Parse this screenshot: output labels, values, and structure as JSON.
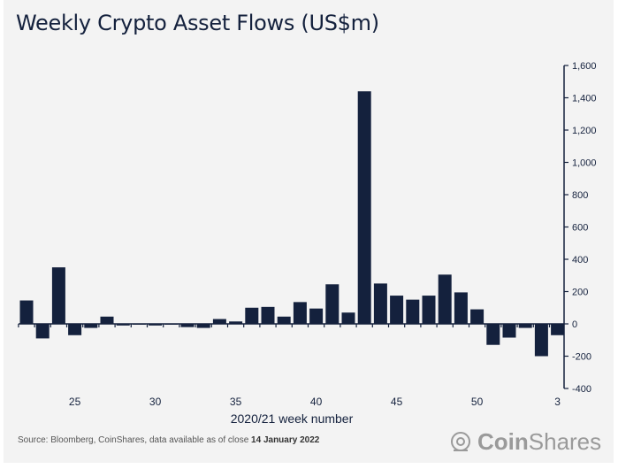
{
  "chart_data": {
    "type": "bar",
    "title": "Weekly Crypto Asset Flows (US$m)",
    "xlabel": "2020/21 week number",
    "ylabel": "",
    "categories": [
      "22",
      "23",
      "24",
      "25",
      "26",
      "27",
      "28",
      "29",
      "30",
      "31",
      "32",
      "33",
      "34",
      "35",
      "36",
      "37",
      "38",
      "39",
      "40",
      "41",
      "42",
      "43",
      "44",
      "45",
      "46",
      "47",
      "48",
      "49",
      "50",
      "51",
      "52",
      "1",
      "2",
      "3"
    ],
    "values": [
      145,
      -90,
      350,
      -70,
      -25,
      45,
      -10,
      -5,
      -10,
      -5,
      -20,
      -25,
      30,
      15,
      100,
      105,
      45,
      135,
      95,
      245,
      70,
      1440,
      250,
      175,
      150,
      175,
      305,
      195,
      90,
      -130,
      -85,
      -25,
      -200,
      -70
    ],
    "x_tick_labels": [
      "25",
      "30",
      "35",
      "40",
      "45",
      "50",
      "3"
    ],
    "y_tick_labels": [
      "1,600",
      "1,400",
      "1,200",
      "1,000",
      "800",
      "600",
      "400",
      "200",
      "0",
      "-200",
      "-400"
    ],
    "y_ticks": [
      1600,
      1400,
      1200,
      1000,
      800,
      600,
      400,
      200,
      0,
      -200,
      -400
    ],
    "ylim": [
      -400,
      1600
    ],
    "y_axis_side": "right",
    "grid": false,
    "bar_color": "#14213d"
  },
  "footer": {
    "source_prefix": "Source: Bloomberg, CoinShares, data available as of close ",
    "source_date": "14 January 2022",
    "logo_bold": "Coin",
    "logo_light": "Shares"
  }
}
